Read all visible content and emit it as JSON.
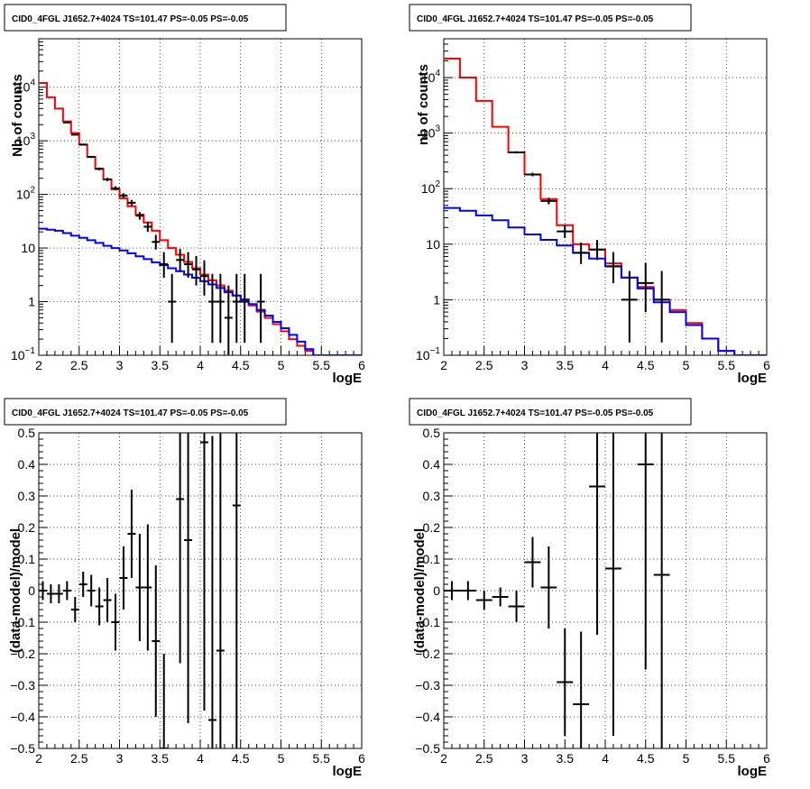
{
  "chart_data": [
    {
      "type": "line",
      "title": "CID0_4FGL J1652.7+4024 TS=101.47 PS=-0.05 PS=-0.05",
      "xlabel": "logE",
      "ylabel": "Nb of counts",
      "xlim": [
        2,
        6
      ],
      "ylim": [
        0.1,
        80000
      ],
      "yscale": "log",
      "grid": true,
      "xticks": [
        "2",
        "2.5",
        "3",
        "3.5",
        "4",
        "4.5",
        "5",
        "5.5",
        "6"
      ],
      "yticks": [
        {
          "value": 0.1,
          "label": "10",
          "sup": "−1"
        },
        {
          "value": 1,
          "label": "1",
          "sup": ""
        },
        {
          "value": 10,
          "label": "10",
          "sup": ""
        },
        {
          "value": 100,
          "label": "10",
          "sup": "2"
        },
        {
          "value": 1000,
          "label": "10",
          "sup": "3"
        },
        {
          "value": 10000,
          "label": "10",
          "sup": "4"
        }
      ],
      "bin_width": 0.1,
      "series": [
        {
          "role": "total model",
          "color": "#ff0000",
          "style": "step",
          "x": [
            2.0,
            2.1,
            2.2,
            2.3,
            2.4,
            2.5,
            2.6,
            2.7,
            2.8,
            2.9,
            3.0,
            3.1,
            3.2,
            3.3,
            3.4,
            3.5,
            3.6,
            3.7,
            3.8,
            3.9,
            4.0,
            4.1,
            4.2,
            4.3,
            4.4,
            4.5,
            4.6,
            4.7,
            4.8,
            4.9,
            5.0,
            5.1,
            5.2,
            5.3,
            5.4,
            5.5,
            5.6,
            5.7,
            5.8,
            5.9
          ],
          "values": [
            12000,
            6500,
            4000,
            2300,
            1400,
            850,
            500,
            300,
            190,
            125,
            85,
            60,
            42,
            30,
            21,
            14,
            10,
            7.5,
            5.5,
            4.2,
            3.2,
            2.5,
            2.0,
            1.6,
            1.3,
            1.05,
            0.85,
            0.65,
            0.5,
            0.38,
            0.28,
            0.2,
            0.15,
            0.12,
            0.1,
            0.1,
            0.1,
            0.1,
            0.1,
            0.1
          ]
        },
        {
          "role": "background model",
          "color": "#0000ff",
          "style": "step",
          "x": [
            2.0,
            2.1,
            2.2,
            2.3,
            2.4,
            2.5,
            2.6,
            2.7,
            2.8,
            2.9,
            3.0,
            3.1,
            3.2,
            3.3,
            3.4,
            3.5,
            3.6,
            3.7,
            3.8,
            3.9,
            4.0,
            4.1,
            4.2,
            4.3,
            4.4,
            4.5,
            4.6,
            4.7,
            4.8,
            4.9,
            5.0,
            5.1,
            5.2,
            5.3,
            5.4,
            5.5,
            5.6,
            5.7,
            5.8,
            5.9
          ],
          "values": [
            23,
            22,
            21,
            19,
            17,
            15.5,
            14,
            12.5,
            11,
            10,
            9,
            8,
            7,
            6.2,
            5.4,
            4.8,
            4.2,
            3.7,
            3.2,
            2.8,
            2.4,
            2.1,
            1.8,
            1.5,
            1.3,
            1.1,
            0.9,
            0.7,
            0.55,
            0.42,
            0.32,
            0.24,
            0.18,
            0.13,
            0.1,
            0.1,
            0.1,
            0.1,
            0.1,
            0.1
          ]
        },
        {
          "role": "data",
          "color": "#000000",
          "style": "errorbar",
          "half_width": 0.05,
          "x": [
            2.35,
            2.45,
            2.55,
            2.65,
            2.75,
            2.85,
            2.95,
            3.05,
            3.15,
            3.25,
            3.35,
            3.45,
            3.55,
            3.65,
            3.75,
            3.85,
            3.95,
            4.05,
            4.15,
            4.25,
            4.35,
            4.45,
            4.55,
            4.75
          ],
          "values": [
            2200,
            1300,
            850,
            500,
            300,
            190,
            130,
            95,
            70,
            40,
            25,
            13,
            5,
            1,
            6,
            5,
            4,
            3,
            1,
            1,
            0.5,
            1,
            1,
            1
          ],
          "err_low": [
            46,
            36,
            29,
            22,
            17,
            14,
            11,
            9.5,
            8.3,
            6.3,
            5,
            3.6,
            2.2,
            0.83,
            2.4,
            2.2,
            2.0,
            1.7,
            0.83,
            0.83,
            0.45,
            0.83,
            0.83,
            0.83
          ],
          "err_high": [
            47,
            37,
            30,
            23,
            18,
            15,
            12,
            10,
            9,
            7,
            6,
            4.6,
            3.4,
            2.3,
            3.6,
            3.4,
            3.1,
            2.9,
            2.3,
            2.3,
            1.5,
            2.3,
            2.3,
            2.3
          ]
        }
      ]
    },
    {
      "type": "line",
      "title": "CID0_4FGL J1652.7+4024 TS=101.47 PS=-0.05 PS=-0.05",
      "xlabel": "logE",
      "ylabel": "nb of counts",
      "xlim": [
        2,
        6
      ],
      "ylim": [
        0.1,
        50000
      ],
      "yscale": "log",
      "grid": true,
      "xticks": [
        "2",
        "2.5",
        "3",
        "3.5",
        "4",
        "4.5",
        "5",
        "5.5",
        "6"
      ],
      "yticks": [
        {
          "value": 0.1,
          "label": "10",
          "sup": "−1"
        },
        {
          "value": 1,
          "label": "1",
          "sup": ""
        },
        {
          "value": 10,
          "label": "10",
          "sup": ""
        },
        {
          "value": 100,
          "label": "10",
          "sup": "2"
        },
        {
          "value": 1000,
          "label": "10",
          "sup": "3"
        },
        {
          "value": 10000,
          "label": "10",
          "sup": "4"
        }
      ],
      "bin_width": 0.2,
      "series": [
        {
          "role": "total model",
          "color": "#ff0000",
          "style": "step",
          "x": [
            2.0,
            2.2,
            2.4,
            2.6,
            2.8,
            3.0,
            3.2,
            3.4,
            3.6,
            3.8,
            4.0,
            4.2,
            4.4,
            4.6,
            4.8,
            5.0,
            5.2,
            5.4,
            5.6,
            5.8
          ],
          "values": [
            22000,
            10000,
            3800,
            1300,
            450,
            180,
            65,
            22,
            10,
            8,
            4.5,
            2.5,
            1.7,
            1.0,
            0.65,
            0.38,
            0.2,
            0.12,
            0.1,
            0.1
          ]
        },
        {
          "role": "background model",
          "color": "#0000ff",
          "style": "step",
          "x": [
            2.0,
            2.2,
            2.4,
            2.6,
            2.8,
            3.0,
            3.2,
            3.4,
            3.6,
            3.8,
            4.0,
            4.2,
            4.4,
            4.6,
            4.8,
            5.0,
            5.2,
            5.4,
            5.6,
            5.8
          ],
          "values": [
            45,
            40,
            33,
            27,
            20,
            15,
            12,
            9.5,
            7,
            5.5,
            4,
            2.5,
            1.6,
            0.9,
            0.6,
            0.35,
            0.2,
            0.12,
            0.1,
            0.1
          ]
        },
        {
          "role": "data",
          "color": "#000000",
          "style": "errorbar",
          "half_width": 0.1,
          "x": [
            2.9,
            3.1,
            3.3,
            3.5,
            3.7,
            3.9,
            4.1,
            4.3,
            4.5,
            4.7
          ],
          "values": [
            450,
            180,
            60,
            17,
            7,
            8,
            4,
            1,
            2,
            1
          ],
          "err_low": [
            21,
            13,
            7.7,
            4.1,
            2.6,
            2.8,
            2,
            0.83,
            1.4,
            0.83
          ],
          "err_high": [
            22,
            14,
            8.7,
            5.2,
            3.7,
            3.9,
            3.2,
            2.3,
            2.6,
            2.3
          ]
        }
      ]
    },
    {
      "type": "scatter",
      "title": "CID0_4FGL J1652.7+4024 TS=101.47 PS=-0.05 PS=-0.05",
      "xlabel": "logE",
      "ylabel": "(data-model)/model",
      "xlim": [
        2,
        6
      ],
      "ylim": [
        -0.5,
        0.5
      ],
      "grid": true,
      "xticks": [
        "2",
        "2.5",
        "3",
        "3.5",
        "4",
        "4.5",
        "5",
        "5.5",
        "6"
      ],
      "yticks": [
        "−0.5",
        "−0.4",
        "−0.3",
        "−0.2",
        "−0.1",
        "0",
        "0.1",
        "0.2",
        "0.3",
        "0.4",
        "0.5"
      ],
      "bin_width": 0.1,
      "series": [
        {
          "role": "residuals",
          "color": "#000000",
          "style": "errorbar",
          "half_width": 0.05,
          "x": [
            2.05,
            2.15,
            2.25,
            2.35,
            2.45,
            2.55,
            2.65,
            2.75,
            2.85,
            2.95,
            3.05,
            3.15,
            3.25,
            3.35,
            3.45,
            3.55,
            3.75,
            3.85,
            4.05,
            4.15,
            4.25,
            4.45
          ],
          "values": [
            0.0,
            -0.01,
            -0.01,
            0.0,
            -0.06,
            0.02,
            0.0,
            -0.05,
            -0.03,
            -0.1,
            0.04,
            0.18,
            0.01,
            0.01,
            -0.16,
            -0.5,
            0.29,
            0.16,
            0.47,
            -0.41,
            -0.19,
            0.27
          ],
          "err": [
            0.03,
            0.03,
            0.03,
            0.03,
            0.04,
            0.04,
            0.05,
            0.06,
            0.07,
            0.09,
            0.1,
            0.14,
            0.17,
            0.2,
            0.24,
            0.3,
            0.52,
            0.58,
            0.85,
            0.9,
            1.0,
            1.2
          ]
        }
      ]
    },
    {
      "type": "scatter",
      "title": "CID0_4FGL J1652.7+4024 TS=101.47 PS=-0.05 PS=-0.05",
      "xlabel": "logE",
      "ylabel": "(data-model)/model",
      "xlim": [
        2,
        6
      ],
      "ylim": [
        -0.5,
        0.5
      ],
      "grid": true,
      "xticks": [
        "2",
        "2.5",
        "3",
        "3.5",
        "4",
        "4.5",
        "5",
        "5.5",
        "6"
      ],
      "yticks": [
        "−0.5",
        "−0.4",
        "−0.3",
        "−0.2",
        "−0.1",
        "0",
        "0.1",
        "0.2",
        "0.3",
        "0.4",
        "0.5"
      ],
      "bin_width": 0.2,
      "series": [
        {
          "role": "residuals",
          "color": "#000000",
          "style": "errorbar",
          "half_width": 0.1,
          "x": [
            2.1,
            2.3,
            2.5,
            2.7,
            2.9,
            3.1,
            3.3,
            3.5,
            3.7,
            3.9,
            4.1,
            4.5,
            4.7
          ],
          "values": [
            0.0,
            0.0,
            -0.03,
            -0.02,
            -0.05,
            0.09,
            0.01,
            -0.29,
            -0.36,
            0.33,
            0.07,
            0.4,
            0.05
          ],
          "err": [
            0.03,
            0.03,
            0.03,
            0.03,
            0.05,
            0.08,
            0.13,
            0.17,
            0.23,
            0.47,
            0.53,
            0.65,
            0.75
          ]
        }
      ]
    }
  ]
}
